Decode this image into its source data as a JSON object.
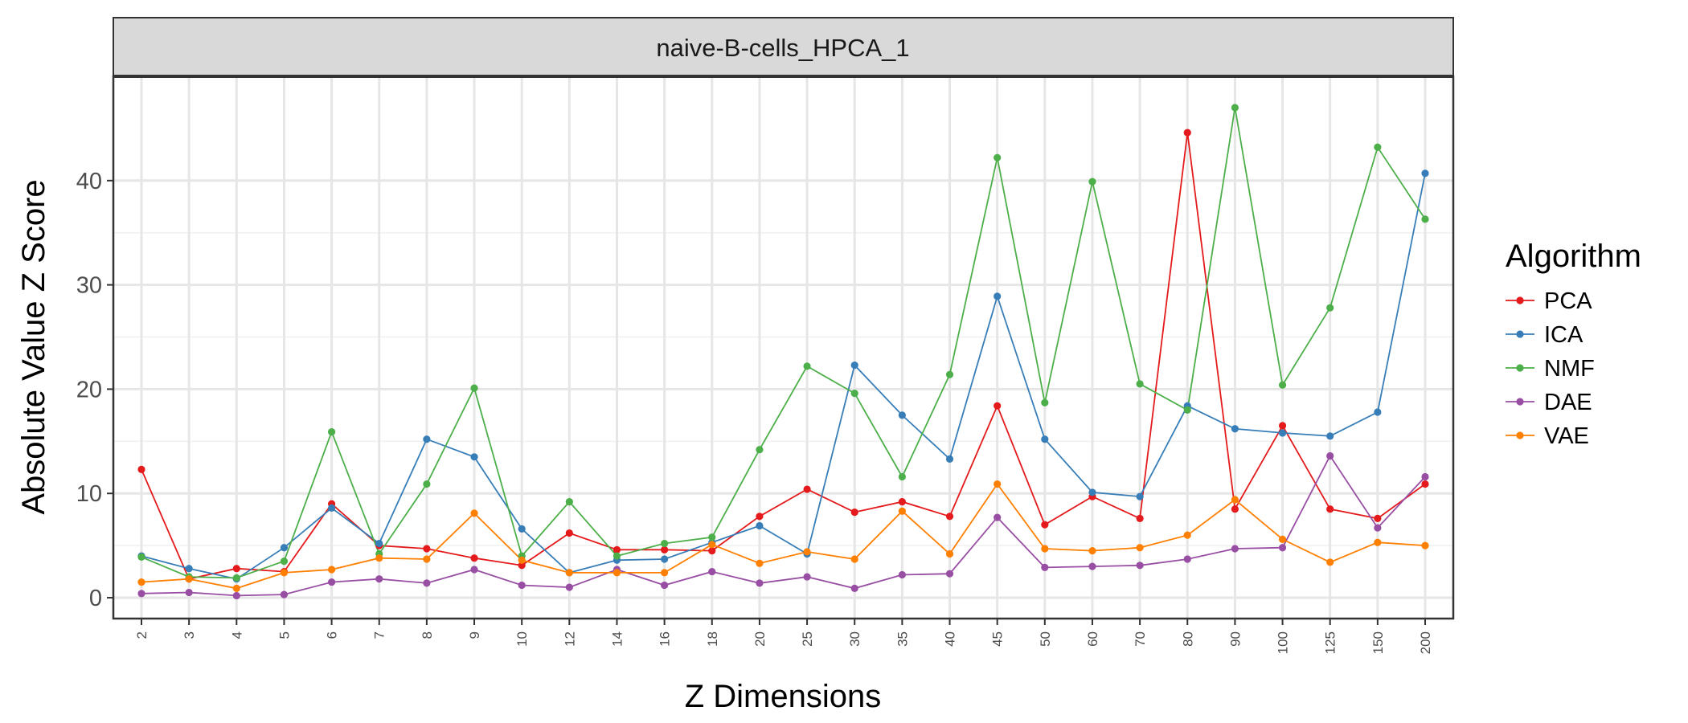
{
  "chart_data": {
    "type": "line",
    "title": "",
    "facet_label": "naive-B-cells_HPCA_1",
    "xlabel": "Z Dimensions",
    "ylabel": "Absolute Value Z Score",
    "ylim": [
      -2,
      50
    ],
    "yticks": [
      0,
      10,
      20,
      30,
      40
    ],
    "grid": true,
    "legend": {
      "title": "Algorithm",
      "placement": "right"
    },
    "categories": [
      "2",
      "3",
      "4",
      "5",
      "6",
      "7",
      "8",
      "9",
      "10",
      "12",
      "14",
      "16",
      "18",
      "20",
      "25",
      "30",
      "35",
      "40",
      "45",
      "50",
      "60",
      "70",
      "80",
      "90",
      "100",
      "125",
      "150",
      "200"
    ],
    "series": [
      {
        "name": "PCA",
        "color": "#E41A1C",
        "values": [
          12.3,
          1.8,
          2.8,
          2.5,
          9.0,
          5.0,
          4.7,
          3.8,
          3.1,
          6.2,
          4.6,
          4.6,
          4.5,
          7.8,
          10.4,
          8.2,
          9.2,
          7.8,
          18.4,
          7.0,
          9.7,
          7.6,
          44.6,
          8.5,
          16.5,
          8.5,
          7.6,
          10.9
        ]
      },
      {
        "name": "ICA",
        "color": "#377EB8",
        "values": [
          4.0,
          2.8,
          1.8,
          4.8,
          8.6,
          5.2,
          15.2,
          13.5,
          6.6,
          2.4,
          3.6,
          3.7,
          5.3,
          6.9,
          4.2,
          22.3,
          17.5,
          13.3,
          28.9,
          15.2,
          10.1,
          9.7,
          18.4,
          16.2,
          15.8,
          15.5,
          17.8,
          40.7
        ]
      },
      {
        "name": "NMF",
        "color": "#4DAF4A",
        "values": [
          3.9,
          2.0,
          1.9,
          3.5,
          15.9,
          4.2,
          10.9,
          20.1,
          4.0,
          9.2,
          4.0,
          5.2,
          5.8,
          14.2,
          22.2,
          19.6,
          11.6,
          21.4,
          42.2,
          18.7,
          39.9,
          20.5,
          18.0,
          47.0,
          20.4,
          27.8,
          43.2,
          36.3
        ]
      },
      {
        "name": "DAE",
        "color": "#984EA3",
        "values": [
          0.4,
          0.5,
          0.2,
          0.3,
          1.5,
          1.8,
          1.4,
          2.7,
          1.2,
          1.0,
          2.7,
          1.2,
          2.5,
          1.4,
          2.0,
          0.9,
          2.2,
          2.3,
          7.7,
          2.9,
          3.0,
          3.1,
          3.7,
          4.7,
          4.8,
          13.6,
          6.7,
          11.6
        ]
      },
      {
        "name": "VAE",
        "color": "#FF7F00",
        "values": [
          1.5,
          1.8,
          0.9,
          2.4,
          2.7,
          3.8,
          3.7,
          8.1,
          3.6,
          2.4,
          2.4,
          2.4,
          5.1,
          3.3,
          4.4,
          3.7,
          8.3,
          4.2,
          10.9,
          4.7,
          4.5,
          4.8,
          6.0,
          9.4,
          5.6,
          3.4,
          5.3,
          5.0
        ]
      }
    ]
  }
}
